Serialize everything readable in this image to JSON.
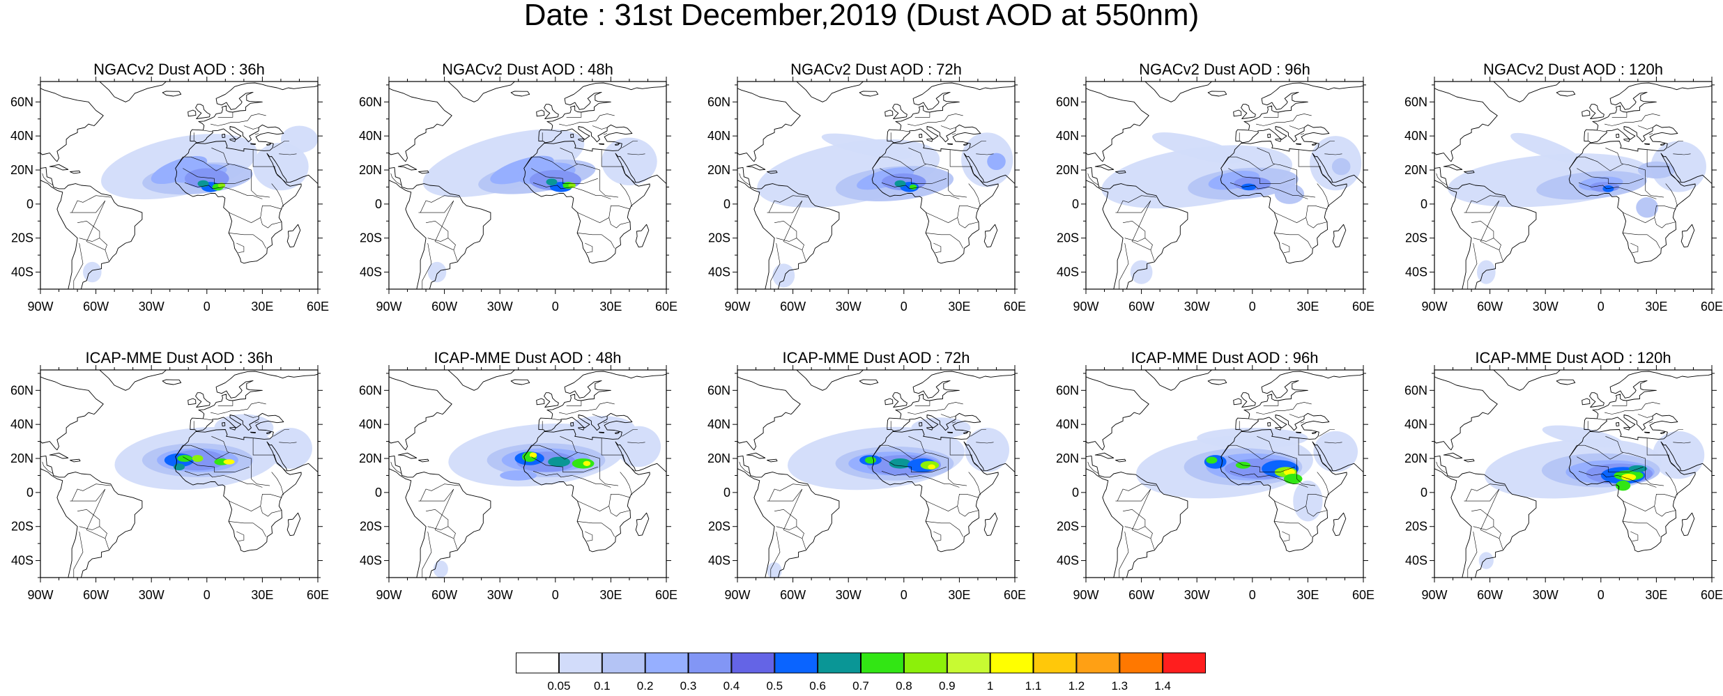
{
  "title": "Date : 31st December,2019 (Dust AOD at 550nm)",
  "lon_ticks": [
    "90W",
    "60W",
    "30W",
    "0",
    "30E",
    "60E"
  ],
  "lat_ticks": [
    "60N",
    "40N",
    "20N",
    "0",
    "20S",
    "40S"
  ],
  "lon_range": [
    -90,
    60
  ],
  "lat_range": [
    -50,
    72
  ],
  "panels": [
    {
      "title": "NGACv2 Dust AOD : 36h",
      "model": "NGACv2",
      "lead": "36h"
    },
    {
      "title": "NGACv2 Dust AOD : 48h",
      "model": "NGACv2",
      "lead": "48h"
    },
    {
      "title": "NGACv2 Dust AOD : 72h",
      "model": "NGACv2",
      "lead": "72h"
    },
    {
      "title": "NGACv2 Dust AOD : 96h",
      "model": "NGACv2",
      "lead": "96h"
    },
    {
      "title": "NGACv2 Dust AOD : 120h",
      "model": "NGACv2",
      "lead": "120h"
    },
    {
      "title": "ICAP-MME Dust AOD : 36h",
      "model": "ICAP-MME",
      "lead": "36h"
    },
    {
      "title": "ICAP-MME Dust AOD : 48h",
      "model": "ICAP-MME",
      "lead": "48h"
    },
    {
      "title": "ICAP-MME Dust AOD : 72h",
      "model": "ICAP-MME",
      "lead": "72h"
    },
    {
      "title": "ICAP-MME Dust AOD : 96h",
      "model": "ICAP-MME",
      "lead": "96h"
    },
    {
      "title": "ICAP-MME Dust AOD : 120h",
      "model": "ICAP-MME",
      "lead": "120h"
    }
  ],
  "colorbar": {
    "labels": [
      "0.05",
      "0.1",
      "0.2",
      "0.3",
      "0.4",
      "0.5",
      "0.6",
      "0.7",
      "0.8",
      "0.9",
      "1",
      "1.1",
      "1.2",
      "1.3",
      "1.4"
    ],
    "colors": [
      "#ffffff",
      "#d2dcfa",
      "#b4c4f5",
      "#96afff",
      "#8296f5",
      "#6464e6",
      "#0a64ff",
      "#0a9696",
      "#32e614",
      "#8cf00a",
      "#c8fa32",
      "#ffff00",
      "#ffc80a",
      "#ffa014",
      "#ff7800",
      "#ff1e1e"
    ]
  }
}
